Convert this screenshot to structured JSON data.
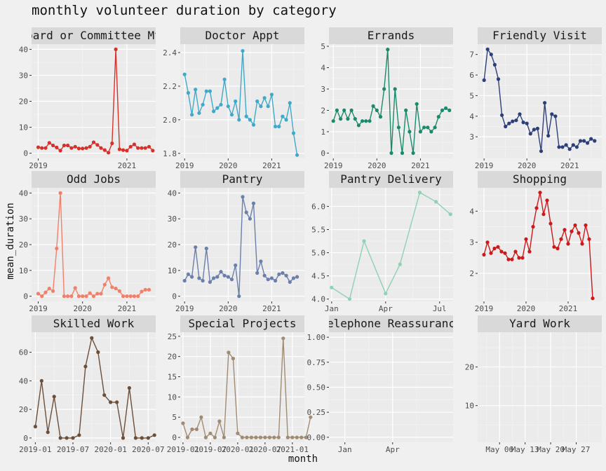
{
  "title": "monthly volunteer duration by category",
  "xlabel": "month",
  "ylabel": "mean_duration",
  "chart_data": [
    {
      "type": "line",
      "panel": "Board or Committee Mtg",
      "color": "#d7302a",
      "x_kind": "year",
      "xlim": [
        2018.85,
        2021.65
      ],
      "ylim": [
        -2,
        42
      ],
      "yticks": [
        0,
        10,
        20,
        30,
        40
      ],
      "xticks": [
        {
          "v": 2019,
          "label": "2019"
        },
        {
          "v": 2021,
          "label": "2021"
        }
      ],
      "x_start": 2019.0,
      "x_step": 0.08333,
      "values": [
        2.3,
        2.0,
        2.0,
        4.0,
        3.0,
        2.2,
        1.0,
        3.0,
        3.0,
        2.0,
        2.5,
        1.8,
        1.8,
        2.0,
        2.5,
        4.2,
        3.2,
        2.0,
        1.2,
        0.2,
        3.8,
        40.0,
        1.5,
        1.2,
        1.0,
        2.5,
        3.4,
        2.0,
        2.0,
        2.0,
        2.5,
        1.0
      ]
    },
    {
      "type": "line",
      "panel": "Doctor Appt",
      "color": "#3fa9c9",
      "x_kind": "year",
      "xlim": [
        2018.9,
        2021.75
      ],
      "ylim": [
        1.77,
        2.45
      ],
      "yticks": [
        1.8,
        2.0,
        2.2,
        2.4
      ],
      "yfmt": 1,
      "xticks": [
        {
          "v": 2019,
          "label": "2019"
        },
        {
          "v": 2020,
          "label": "2020"
        },
        {
          "v": 2021,
          "label": "2021"
        }
      ],
      "x_start": 2019.0,
      "x_step": 0.08333,
      "values": [
        2.27,
        2.16,
        2.03,
        2.18,
        2.04,
        2.09,
        2.17,
        2.17,
        2.05,
        2.07,
        2.09,
        2.24,
        2.08,
        2.03,
        2.11,
        2.0,
        2.41,
        2.02,
        2.0,
        1.97,
        2.11,
        2.08,
        2.13,
        2.08,
        2.15,
        1.96,
        1.96,
        2.02,
        2.0,
        2.1,
        1.92,
        1.79
      ]
    },
    {
      "type": "line",
      "panel": "Errands",
      "color": "#1b8a6b",
      "x_kind": "year",
      "xlim": [
        2018.9,
        2021.75
      ],
      "ylim": [
        -0.25,
        5.1
      ],
      "yticks": [
        0,
        1,
        2,
        3,
        4,
        5
      ],
      "xticks": [
        {
          "v": 2019,
          "label": "2019"
        },
        {
          "v": 2020,
          "label": "2020"
        },
        {
          "v": 2021,
          "label": "2021"
        }
      ],
      "x_start": 2019.0,
      "x_step": 0.08333,
      "values": [
        1.5,
        2.0,
        1.6,
        2.0,
        1.6,
        2.0,
        1.6,
        1.3,
        1.5,
        1.5,
        1.5,
        2.2,
        2.0,
        1.7,
        3.0,
        4.85,
        0.0,
        3.0,
        1.2,
        0.0,
        2.0,
        1.0,
        0.0,
        2.3,
        1.0,
        1.2,
        1.2,
        1.0,
        1.2,
        1.7,
        2.0,
        2.1,
        2.0
      ]
    },
    {
      "type": "line",
      "panel": "Friendly Visit",
      "color": "#2e3f78",
      "x_kind": "year",
      "xlim": [
        2018.85,
        2021.75
      ],
      "ylim": [
        1.95,
        7.5
      ],
      "yticks": [
        3,
        4,
        5,
        6,
        7
      ],
      "xticks": [
        {
          "v": 2019,
          "label": "2019"
        },
        {
          "v": 2020,
          "label": "2020"
        },
        {
          "v": 2021,
          "label": "2021"
        }
      ],
      "x_start": 2019.0,
      "x_step": 0.08333,
      "values": [
        5.75,
        7.25,
        7.0,
        6.5,
        5.8,
        4.05,
        3.5,
        3.65,
        3.75,
        3.8,
        4.1,
        3.7,
        3.65,
        3.15,
        3.35,
        3.4,
        2.3,
        4.65,
        3.05,
        4.1,
        4.0,
        2.5,
        2.5,
        2.6,
        2.4,
        2.6,
        2.5,
        2.8,
        2.8,
        2.7,
        2.9,
        2.8
      ]
    },
    {
      "type": "line",
      "panel": "Odd Jobs",
      "color": "#f0806a",
      "x_kind": "year",
      "xlim": [
        2018.85,
        2021.65
      ],
      "ylim": [
        -2,
        42
      ],
      "yticks": [
        0,
        10,
        20,
        30,
        40
      ],
      "xticks": [
        {
          "v": 2019,
          "label": "2019"
        },
        {
          "v": 2020,
          "label": "2020"
        },
        {
          "v": 2021,
          "label": "2021"
        }
      ],
      "x_start": 2019.0,
      "x_step": 0.08333,
      "values": [
        1.0,
        0.0,
        1.5,
        3.0,
        2.0,
        18.5,
        40.0,
        0.0,
        0.0,
        0.0,
        3.2,
        0.0,
        0.0,
        0.0,
        1.2,
        0.0,
        1.0,
        1.0,
        4.5,
        7.0,
        3.5,
        3.0,
        2.0,
        0.0,
        0.0,
        0.0,
        0.0,
        0.0,
        1.8,
        2.5,
        2.5
      ]
    },
    {
      "type": "line",
      "panel": "Pantry",
      "color": "#6a7faa",
      "x_kind": "year",
      "xlim": [
        2018.9,
        2021.75
      ],
      "ylim": [
        -2,
        42
      ],
      "yticks": [
        0,
        10,
        20,
        30,
        40
      ],
      "xticks": [
        {
          "v": 2019,
          "label": "2019"
        },
        {
          "v": 2020,
          "label": "2020"
        },
        {
          "v": 2021,
          "label": "2021"
        }
      ],
      "x_start": 2019.0,
      "x_step": 0.08333,
      "values": [
        6.0,
        8.5,
        7.5,
        19.0,
        7.0,
        6.0,
        18.5,
        5.5,
        7.0,
        7.5,
        9.5,
        8.0,
        7.5,
        6.5,
        12.0,
        0.0,
        38.5,
        32.5,
        30.0,
        36.0,
        9.0,
        13.5,
        8.0,
        6.5,
        7.0,
        6.0,
        8.5,
        9.0,
        8.0,
        5.5,
        7.0,
        7.5
      ]
    },
    {
      "type": "line",
      "panel": "Pantry Delivery",
      "color": "#8fd1b4",
      "x_kind": "month",
      "xlim": [
        0.85,
        7.75
      ],
      "ylim": [
        3.95,
        6.4
      ],
      "yticks": [
        4.0,
        4.5,
        5.0,
        5.5,
        6.0
      ],
      "yfmt": 1,
      "xticks": [
        {
          "v": 1,
          "label": "Jan"
        },
        {
          "v": 4,
          "label": "Apr"
        },
        {
          "v": 7,
          "label": "Jul"
        }
      ],
      "x": [
        1,
        2,
        2.8,
        4,
        4.8,
        5.9,
        6.8,
        7.6
      ],
      "values": [
        4.25,
        4.0,
        5.25,
        4.12,
        4.75,
        6.3,
        6.1,
        5.83
      ]
    },
    {
      "type": "line",
      "panel": "Shopping",
      "color": "#cc1a1a",
      "x_kind": "year",
      "xlim": [
        2018.85,
        2021.8
      ],
      "ylim": [
        1.1,
        4.75
      ],
      "yticks": [
        2,
        3,
        4
      ],
      "xticks": [
        {
          "v": 2019,
          "label": "2019"
        },
        {
          "v": 2020,
          "label": "2020"
        },
        {
          "v": 2021,
          "label": "2021"
        }
      ],
      "x_start": 2019.0,
      "x_step": 0.08333,
      "values": [
        2.6,
        3.0,
        2.65,
        2.8,
        2.85,
        2.7,
        2.65,
        2.45,
        2.45,
        2.7,
        2.5,
        2.5,
        3.1,
        2.7,
        3.5,
        4.1,
        4.6,
        3.9,
        4.35,
        3.6,
        2.85,
        2.8,
        3.1,
        3.4,
        2.95,
        3.35,
        3.55,
        3.3,
        2.95,
        3.55,
        3.1,
        1.2
      ]
    },
    {
      "type": "line",
      "panel": "Skilled Work",
      "color": "#6b4f3a",
      "x_kind": "year",
      "xlim": [
        2018.95,
        2020.6
      ],
      "ylim": [
        -3,
        74
      ],
      "yticks": [
        0,
        20,
        40,
        60
      ],
      "xticks": [
        {
          "v": 2019.0,
          "label": "2019-01"
        },
        {
          "v": 2019.5,
          "label": "2019-07"
        },
        {
          "v": 2020.0,
          "label": "2020-01"
        },
        {
          "v": 2020.5,
          "label": "2020-07"
        }
      ],
      "x_start": 2019.0,
      "x_step": 0.08333,
      "values": [
        8,
        40,
        4,
        29,
        0,
        0,
        0,
        2,
        50,
        70,
        60,
        30,
        25,
        25,
        0,
        35,
        0,
        0,
        0,
        2
      ]
    },
    {
      "type": "line",
      "panel": "Special Projects",
      "color": "#a08c73",
      "x_kind": "year",
      "xlim": [
        2018.95,
        2021.22
      ],
      "ylim": [
        -1.2,
        26
      ],
      "yticks": [
        0,
        5,
        10,
        15,
        20,
        25
      ],
      "xticks": [
        {
          "v": 2019.0,
          "label": "2019-01"
        },
        {
          "v": 2019.5,
          "label": "2019-07"
        },
        {
          "v": 2020.0,
          "label": "2020-01"
        },
        {
          "v": 2020.5,
          "label": "2020-07"
        },
        {
          "v": 2021.0,
          "label": "2021-01"
        }
      ],
      "x_start": 2019.0,
      "x_step": 0.08333,
      "values": [
        3.5,
        0.0,
        2.0,
        2.0,
        5.0,
        0.0,
        1.0,
        0.0,
        4.0,
        0.0,
        21.0,
        19.5,
        1.0,
        0.0,
        0.0,
        0.0,
        0.0,
        0.0,
        0.0,
        0.0,
        0.0,
        0.0,
        24.5,
        0.0,
        0.0,
        0.0,
        0.0,
        0.0,
        5.0
      ]
    },
    {
      "type": "line",
      "panel": "Telephone Reassurance",
      "color": "#888888",
      "x_kind": "month",
      "xlim": [
        0.0,
        7.8
      ],
      "ylim": [
        -0.05,
        1.05
      ],
      "yticks": [
        0.0,
        0.25,
        0.5,
        0.75,
        1.0
      ],
      "yfmt": 2,
      "xticks": [
        {
          "v": 1,
          "label": "Jan"
        },
        {
          "v": 4,
          "label": "Apr"
        }
      ],
      "values": []
    },
    {
      "type": "line",
      "panel": "Yard Work",
      "color": "#888888",
      "x_kind": "day",
      "xlim": [
        0.0,
        34.0
      ],
      "ylim": [
        0.5,
        29
      ],
      "yticks": [
        10,
        20
      ],
      "xticks": [
        {
          "v": 6,
          "label": "May 06"
        },
        {
          "v": 13,
          "label": "May 13"
        },
        {
          "v": 20,
          "label": "May 20"
        },
        {
          "v": 27,
          "label": "May 27"
        }
      ],
      "values": []
    }
  ]
}
